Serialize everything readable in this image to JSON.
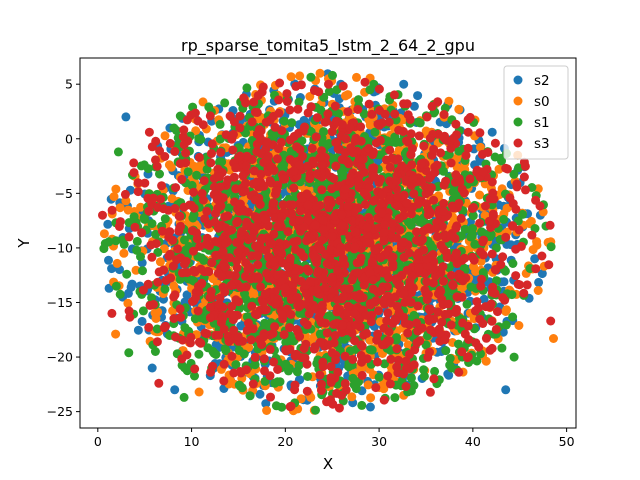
{
  "chart_data": {
    "type": "scatter",
    "title": "rp_sparse_tomita5_lstm_2_64_2_gpu",
    "xlabel": "X",
    "ylabel": "Y",
    "xlim": [
      -1.9,
      51.0
    ],
    "ylim": [
      -26.5,
      7.4
    ],
    "xticks": [
      0,
      10,
      20,
      30,
      40,
      50
    ],
    "yticks": [
      5,
      0,
      -5,
      -10,
      -15,
      -20,
      -25
    ],
    "grid": false,
    "legend_position": "top-right",
    "cloud": {
      "center": [
        24.5,
        -9.5
      ],
      "x_range": [
        0.5,
        48.5
      ],
      "y_range": [
        -25.0,
        6.2
      ],
      "approx_points_per_series": 1500
    },
    "series": [
      {
        "name": "s2",
        "color": "#1f77b4",
        "highlighted_points": [
          [
            3.0,
            2.0
          ],
          [
            5.8,
            -21.0
          ],
          [
            8.2,
            -23.0
          ],
          [
            1.2,
            -13.7
          ],
          [
            46.6,
            -11.0
          ],
          [
            47.2,
            -7.0
          ],
          [
            43.5,
            -23.0
          ],
          [
            12.0,
            -21.7
          ],
          [
            32.5,
            -22.0
          ]
        ]
      },
      {
        "name": "s0",
        "color": "#ff7f0e",
        "highlighted_points": [
          [
            23.7,
            6.0
          ],
          [
            38.5,
            2.7
          ],
          [
            48.6,
            -18.3
          ],
          [
            1.9,
            -17.9
          ],
          [
            0.7,
            -8.7
          ],
          [
            18.0,
            -24.9
          ],
          [
            30.5,
            -22.9
          ],
          [
            10.8,
            -23.2
          ],
          [
            47.5,
            -6.7
          ],
          [
            44.0,
            -14.0
          ]
        ]
      },
      {
        "name": "s1",
        "color": "#2ca02c",
        "highlighted_points": [
          [
            2.2,
            -1.2
          ],
          [
            3.3,
            -19.6
          ],
          [
            9.2,
            -23.7
          ],
          [
            21.0,
            -24.2
          ],
          [
            0.8,
            -9.6
          ],
          [
            47.8,
            -8.0
          ],
          [
            44.4,
            -20.0
          ],
          [
            25.5,
            4.5
          ],
          [
            42.0,
            -3.3
          ],
          [
            4.5,
            -14.0
          ]
        ]
      },
      {
        "name": "s3",
        "color": "#d62728",
        "highlighted_points": [
          [
            5.5,
            0.6
          ],
          [
            0.5,
            -7.0
          ],
          [
            1.5,
            -16.0
          ],
          [
            6.5,
            -22.4
          ],
          [
            48.3,
            -16.7
          ],
          [
            38.5,
            -21.4
          ],
          [
            45.5,
            -3.5
          ],
          [
            20.6,
            -24.5
          ],
          [
            33.0,
            3.2
          ],
          [
            26.0,
            -23.5
          ]
        ]
      }
    ]
  }
}
